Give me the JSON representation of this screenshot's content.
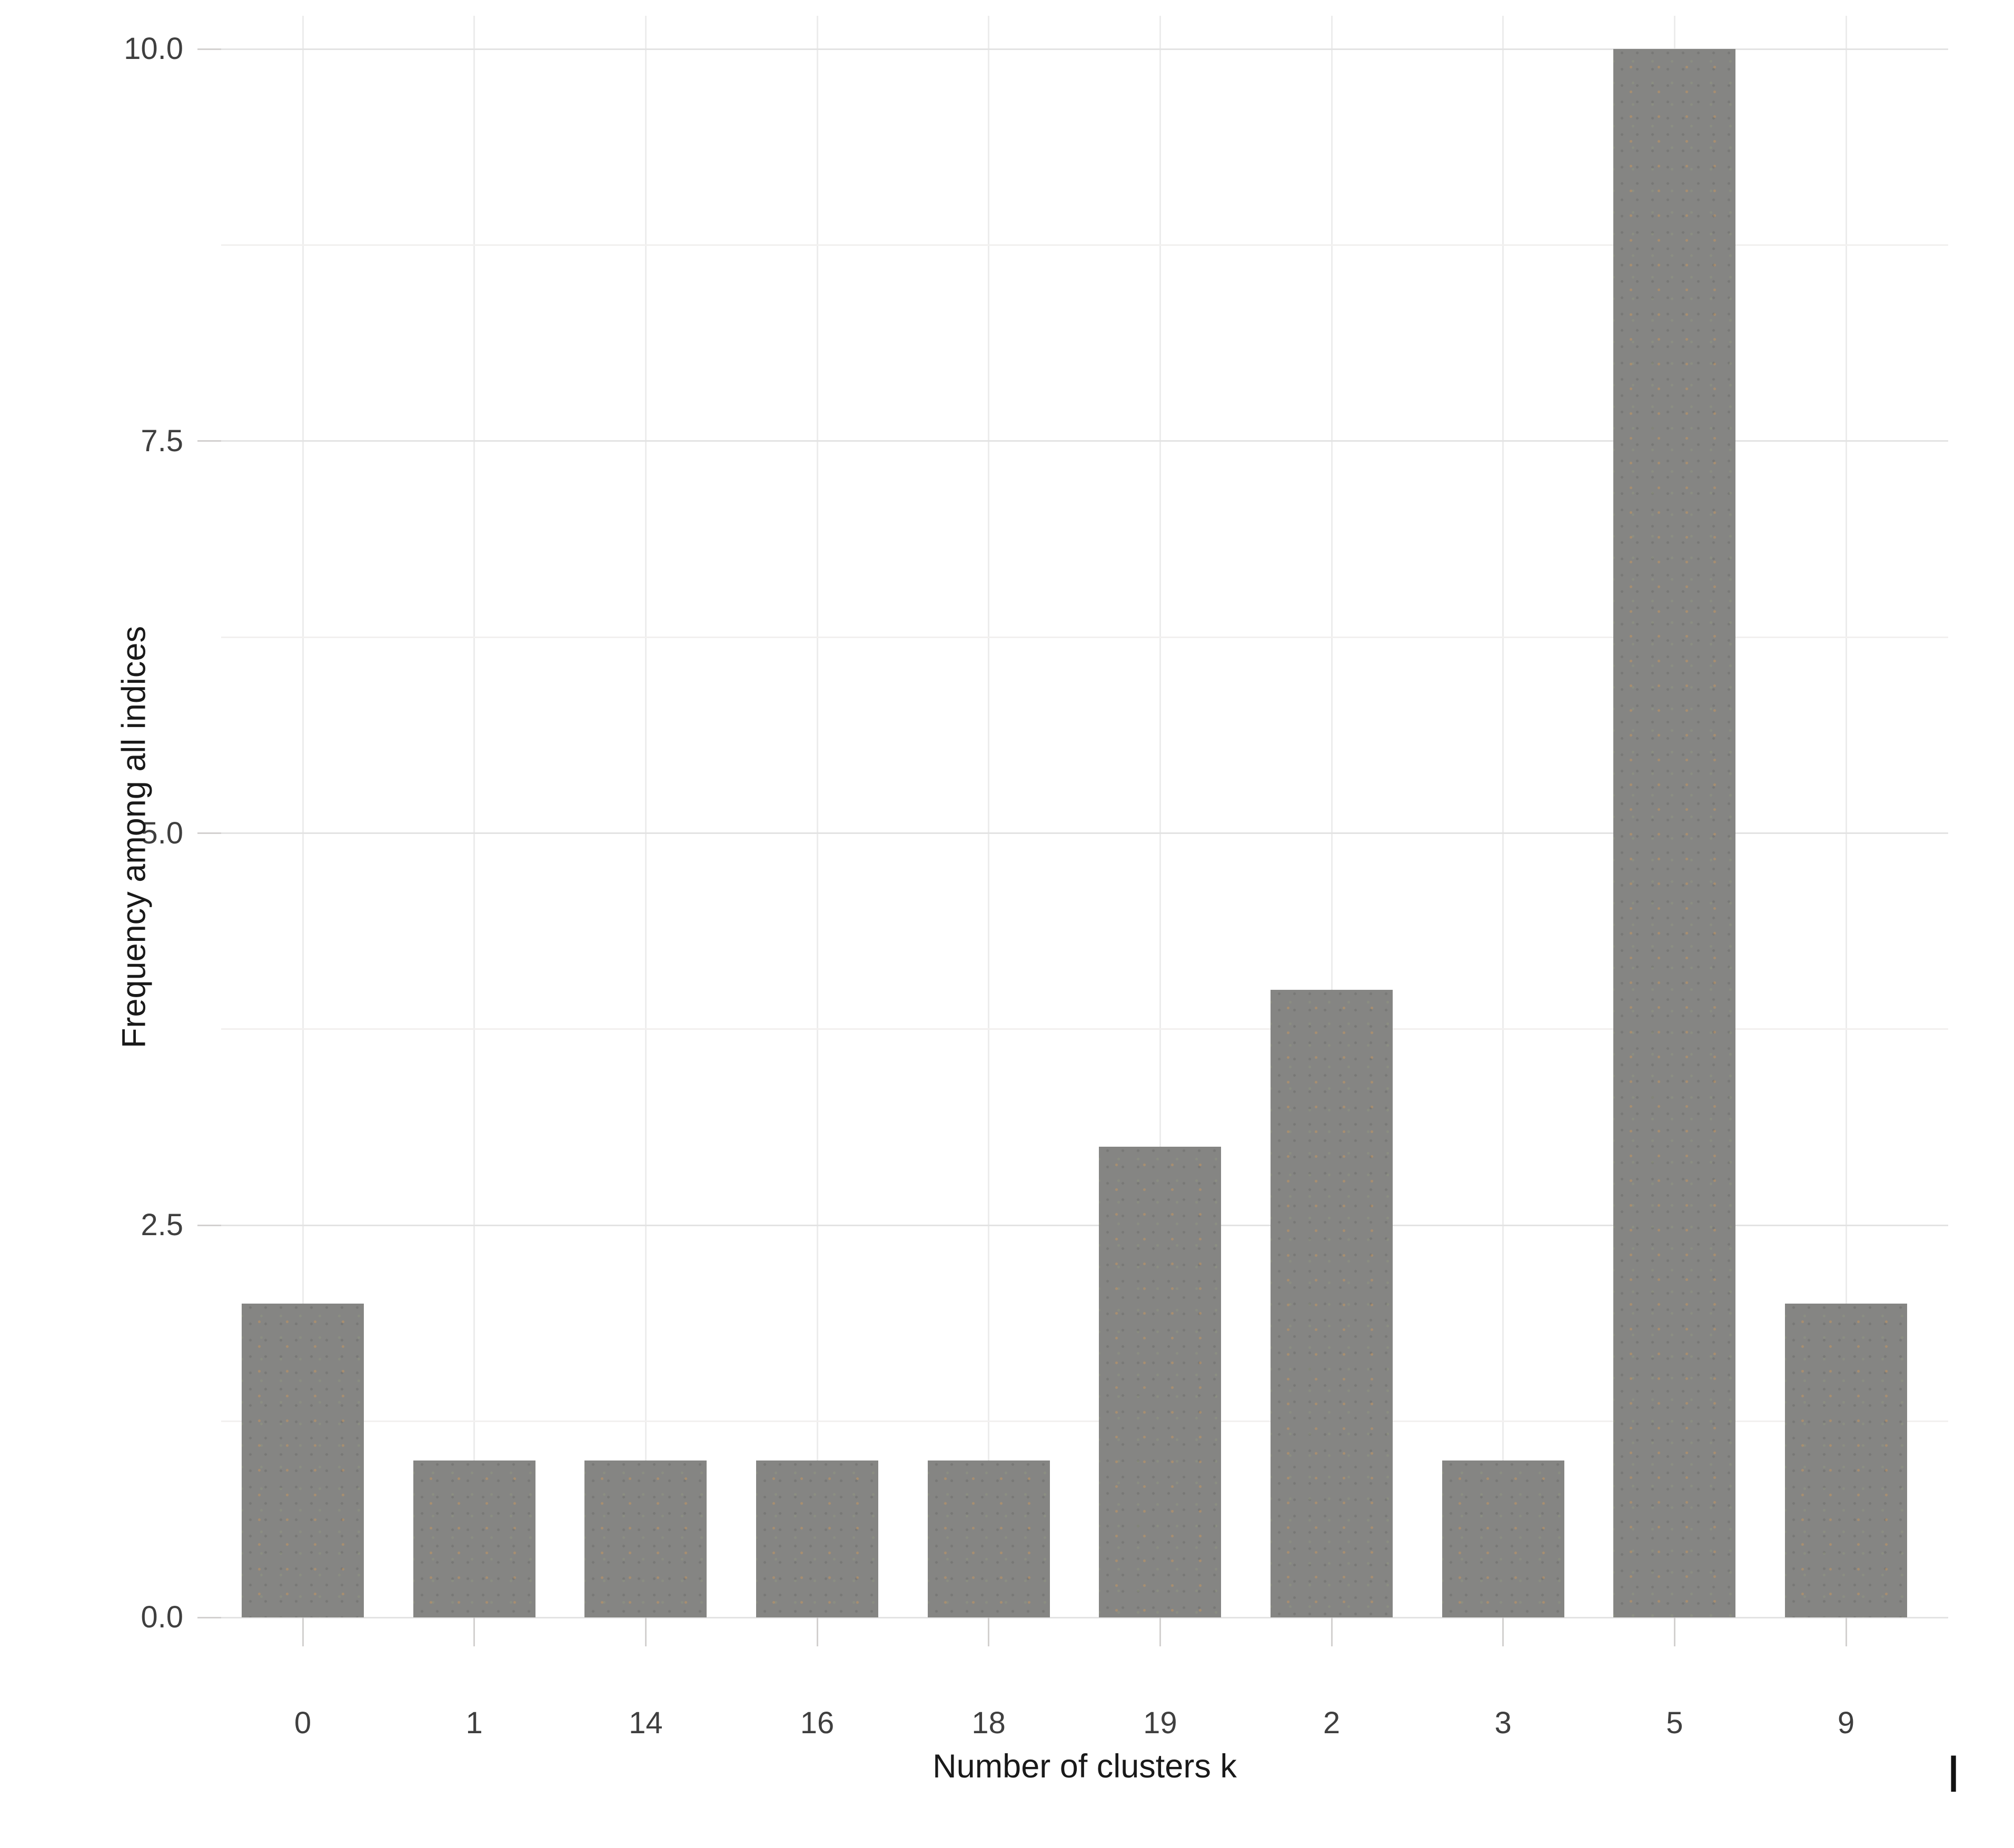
{
  "chart_data": {
    "type": "bar",
    "title": "",
    "categories": [
      "0",
      "1",
      "14",
      "16",
      "18",
      "19",
      "2",
      "3",
      "5",
      "9"
    ],
    "values": [
      2,
      1,
      1,
      1,
      1,
      3,
      4,
      1,
      10,
      2
    ],
    "xlabel": "Number of clusters k",
    "ylabel": "Frequency among all indices",
    "y_ticks": [
      {
        "label": "0.0",
        "value": 0
      },
      {
        "label": "2.5",
        "value": 2.5
      },
      {
        "label": "5.0",
        "value": 5
      },
      {
        "label": "7.5",
        "value": 7.5
      },
      {
        "label": "10.0",
        "value": 10
      }
    ],
    "ylim": [
      0,
      10.2
    ],
    "grid": "horizontal major and minor lines, vertical line at each category",
    "legend_position": "none",
    "bar_color": "#858583",
    "grid_major_color": "#e3e3e3",
    "grid_minor_color": "#f2f0ef",
    "grid_vertical_color": "#ececec",
    "tick_mark_color": "#d2d0cf",
    "tick_label_color": "#3f3f3f",
    "axis_title_color": "#191919"
  },
  "artifacts": {
    "text_cursor": "|"
  }
}
